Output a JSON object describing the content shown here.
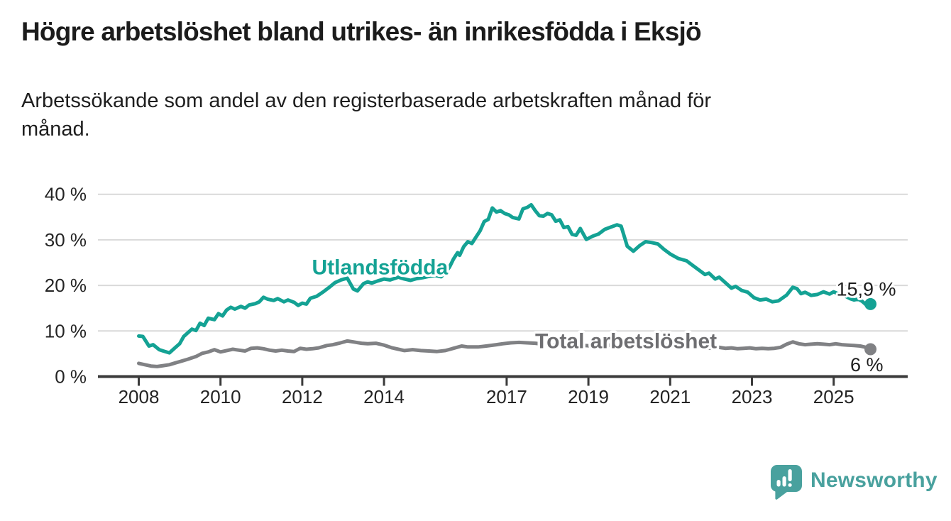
{
  "chart_data": {
    "type": "line",
    "title": "Högre arbetslöshet bland utrikes- än inrikesfödda i Eksjö",
    "subtitle": "Arbetssökande som andel av den registerbaserade arbetskraften månad för\nmånad.",
    "unit": "%",
    "grid": "horizontal",
    "xlim": [
      2007.9,
      2026.3
    ],
    "ylim": [
      0,
      41
    ],
    "x_ticks": [
      {
        "year": 2008,
        "label": "2008"
      },
      {
        "year": 2010,
        "label": "2010"
      },
      {
        "year": 2012,
        "label": "2012"
      },
      {
        "year": 2014,
        "label": "2014"
      },
      {
        "year": 2017,
        "label": "2017"
      },
      {
        "year": 2019,
        "label": "2019"
      },
      {
        "year": 2021,
        "label": "2021"
      },
      {
        "year": 2023,
        "label": "2023"
      },
      {
        "year": 2025,
        "label": "2025"
      }
    ],
    "y_ticks": [
      {
        "value": 0,
        "label": "0 %"
      },
      {
        "value": 10,
        "label": "10 %"
      },
      {
        "value": 20,
        "label": "20 %"
      },
      {
        "value": 30,
        "label": "30 %"
      },
      {
        "value": 40,
        "label": "40 %"
      }
    ],
    "series": [
      {
        "name": "Utlandsfödda",
        "color": "#14a294",
        "label_color": "#14a294",
        "end_value": 15.9,
        "end_label": "15,9 %",
        "end_label_side": "above",
        "label_pos": {
          "x": 2013.9,
          "y": 22.4
        },
        "points": [
          [
            2008.0,
            8.9
          ],
          [
            2008.1,
            8.8
          ],
          [
            2008.25,
            6.7
          ],
          [
            2008.35,
            7.0
          ],
          [
            2008.5,
            5.9
          ],
          [
            2008.6,
            5.6
          ],
          [
            2008.75,
            5.2
          ],
          [
            2008.9,
            6.4
          ],
          [
            2009.0,
            7.2
          ],
          [
            2009.1,
            8.8
          ],
          [
            2009.3,
            10.4
          ],
          [
            2009.4,
            10.1
          ],
          [
            2009.5,
            11.7
          ],
          [
            2009.6,
            11.2
          ],
          [
            2009.7,
            12.8
          ],
          [
            2009.85,
            12.5
          ],
          [
            2009.95,
            13.8
          ],
          [
            2010.05,
            13.3
          ],
          [
            2010.15,
            14.6
          ],
          [
            2010.25,
            15.2
          ],
          [
            2010.35,
            14.8
          ],
          [
            2010.5,
            15.4
          ],
          [
            2010.6,
            15.0
          ],
          [
            2010.7,
            15.7
          ],
          [
            2010.85,
            16.0
          ],
          [
            2010.95,
            16.4
          ],
          [
            2011.05,
            17.4
          ],
          [
            2011.15,
            17.0
          ],
          [
            2011.3,
            16.7
          ],
          [
            2011.4,
            17.1
          ],
          [
            2011.55,
            16.4
          ],
          [
            2011.65,
            16.8
          ],
          [
            2011.8,
            16.3
          ],
          [
            2011.9,
            15.6
          ],
          [
            2012.0,
            16.1
          ],
          [
            2012.1,
            15.9
          ],
          [
            2012.2,
            17.2
          ],
          [
            2012.35,
            17.6
          ],
          [
            2012.5,
            18.5
          ],
          [
            2012.65,
            19.5
          ],
          [
            2012.8,
            20.6
          ],
          [
            2012.95,
            21.2
          ],
          [
            2013.1,
            21.6
          ],
          [
            2013.25,
            19.2
          ],
          [
            2013.35,
            18.8
          ],
          [
            2013.5,
            20.4
          ],
          [
            2013.6,
            20.8
          ],
          [
            2013.7,
            20.5
          ],
          [
            2013.85,
            21.0
          ],
          [
            2014.0,
            21.4
          ],
          [
            2014.15,
            21.2
          ],
          [
            2014.35,
            21.8
          ],
          [
            2014.5,
            21.4
          ],
          [
            2014.65,
            21.1
          ],
          [
            2014.8,
            21.5
          ],
          [
            2014.95,
            21.7
          ],
          [
            2015.1,
            22.0
          ],
          [
            2015.25,
            22.2
          ],
          [
            2015.4,
            21.9
          ],
          [
            2015.5,
            22.8
          ],
          [
            2015.6,
            24.0
          ],
          [
            2015.7,
            25.8
          ],
          [
            2015.8,
            27.2
          ],
          [
            2015.85,
            26.6
          ],
          [
            2015.95,
            28.5
          ],
          [
            2016.05,
            29.6
          ],
          [
            2016.15,
            29.2
          ],
          [
            2016.25,
            30.6
          ],
          [
            2016.35,
            32.0
          ],
          [
            2016.45,
            34.0
          ],
          [
            2016.55,
            34.5
          ],
          [
            2016.65,
            37.0
          ],
          [
            2016.75,
            36.1
          ],
          [
            2016.85,
            36.4
          ],
          [
            2016.95,
            35.8
          ],
          [
            2017.05,
            35.5
          ],
          [
            2017.15,
            34.9
          ],
          [
            2017.3,
            34.6
          ],
          [
            2017.4,
            36.8
          ],
          [
            2017.5,
            37.1
          ],
          [
            2017.6,
            37.7
          ],
          [
            2017.7,
            36.4
          ],
          [
            2017.8,
            35.3
          ],
          [
            2017.9,
            35.2
          ],
          [
            2018.0,
            35.8
          ],
          [
            2018.1,
            35.5
          ],
          [
            2018.2,
            34.1
          ],
          [
            2018.3,
            34.4
          ],
          [
            2018.4,
            32.7
          ],
          [
            2018.5,
            32.9
          ],
          [
            2018.6,
            31.2
          ],
          [
            2018.7,
            31.0
          ],
          [
            2018.8,
            32.5
          ],
          [
            2018.95,
            30.1
          ],
          [
            2019.1,
            30.8
          ],
          [
            2019.25,
            31.3
          ],
          [
            2019.4,
            32.3
          ],
          [
            2019.55,
            32.8
          ],
          [
            2019.7,
            33.3
          ],
          [
            2019.8,
            33.0
          ],
          [
            2019.95,
            28.6
          ],
          [
            2020.1,
            27.5
          ],
          [
            2020.25,
            28.7
          ],
          [
            2020.4,
            29.6
          ],
          [
            2020.55,
            29.4
          ],
          [
            2020.7,
            29.1
          ],
          [
            2020.85,
            27.9
          ],
          [
            2021.0,
            26.9
          ],
          [
            2021.2,
            25.9
          ],
          [
            2021.4,
            25.4
          ],
          [
            2021.55,
            24.4
          ],
          [
            2021.7,
            23.4
          ],
          [
            2021.85,
            22.4
          ],
          [
            2021.95,
            22.7
          ],
          [
            2022.1,
            21.4
          ],
          [
            2022.2,
            21.8
          ],
          [
            2022.35,
            20.6
          ],
          [
            2022.5,
            19.4
          ],
          [
            2022.6,
            19.8
          ],
          [
            2022.75,
            18.9
          ],
          [
            2022.9,
            18.5
          ],
          [
            2023.05,
            17.3
          ],
          [
            2023.2,
            16.8
          ],
          [
            2023.35,
            17.0
          ],
          [
            2023.5,
            16.4
          ],
          [
            2023.65,
            16.6
          ],
          [
            2023.85,
            17.9
          ],
          [
            2024.0,
            19.6
          ],
          [
            2024.1,
            19.3
          ],
          [
            2024.2,
            18.2
          ],
          [
            2024.3,
            18.5
          ],
          [
            2024.45,
            17.8
          ],
          [
            2024.6,
            18.0
          ],
          [
            2024.75,
            18.6
          ],
          [
            2024.9,
            18.1
          ],
          [
            2025.0,
            18.6
          ],
          [
            2025.1,
            18.2
          ],
          [
            2025.25,
            17.8
          ],
          [
            2025.4,
            17.1
          ],
          [
            2025.5,
            16.8
          ],
          [
            2025.6,
            17.0
          ],
          [
            2025.7,
            16.5
          ],
          [
            2025.8,
            15.7
          ],
          [
            2025.9,
            15.9
          ]
        ]
      },
      {
        "name": "Total arbetslöshet",
        "color": "#808184",
        "label_color": "#6e6e71",
        "end_value": 6,
        "end_label": "6 %",
        "end_label_side": "below",
        "label_pos": {
          "x": 2019.92,
          "y": 6.25
        },
        "points": [
          [
            2008.0,
            2.9
          ],
          [
            2008.15,
            2.6
          ],
          [
            2008.3,
            2.3
          ],
          [
            2008.45,
            2.2
          ],
          [
            2008.6,
            2.4
          ],
          [
            2008.75,
            2.6
          ],
          [
            2008.9,
            3.0
          ],
          [
            2009.05,
            3.4
          ],
          [
            2009.2,
            3.8
          ],
          [
            2009.4,
            4.4
          ],
          [
            2009.55,
            5.1
          ],
          [
            2009.7,
            5.4
          ],
          [
            2009.85,
            5.9
          ],
          [
            2010.0,
            5.4
          ],
          [
            2010.15,
            5.7
          ],
          [
            2010.3,
            6.0
          ],
          [
            2010.45,
            5.8
          ],
          [
            2010.6,
            5.6
          ],
          [
            2010.75,
            6.2
          ],
          [
            2010.9,
            6.3
          ],
          [
            2011.05,
            6.1
          ],
          [
            2011.2,
            5.8
          ],
          [
            2011.35,
            5.6
          ],
          [
            2011.5,
            5.8
          ],
          [
            2011.65,
            5.6
          ],
          [
            2011.8,
            5.5
          ],
          [
            2011.95,
            6.2
          ],
          [
            2012.1,
            6.0
          ],
          [
            2012.25,
            6.1
          ],
          [
            2012.4,
            6.3
          ],
          [
            2012.6,
            6.8
          ],
          [
            2012.75,
            7.0
          ],
          [
            2012.9,
            7.3
          ],
          [
            2013.1,
            7.8
          ],
          [
            2013.25,
            7.6
          ],
          [
            2013.45,
            7.3
          ],
          [
            2013.6,
            7.2
          ],
          [
            2013.8,
            7.3
          ],
          [
            2014.0,
            6.9
          ],
          [
            2014.2,
            6.3
          ],
          [
            2014.35,
            6.0
          ],
          [
            2014.5,
            5.7
          ],
          [
            2014.7,
            5.9
          ],
          [
            2014.9,
            5.7
          ],
          [
            2015.1,
            5.6
          ],
          [
            2015.3,
            5.5
          ],
          [
            2015.5,
            5.7
          ],
          [
            2015.7,
            6.2
          ],
          [
            2015.9,
            6.7
          ],
          [
            2016.05,
            6.5
          ],
          [
            2016.3,
            6.5
          ],
          [
            2016.5,
            6.7
          ],
          [
            2016.75,
            7.0
          ],
          [
            2016.9,
            7.2
          ],
          [
            2017.1,
            7.4
          ],
          [
            2017.3,
            7.5
          ],
          [
            2017.5,
            7.4
          ],
          [
            2017.7,
            7.3
          ],
          [
            2017.9,
            7.1
          ],
          [
            2018.1,
            7.0
          ],
          [
            2018.3,
            6.9
          ],
          [
            2018.5,
            6.8
          ],
          [
            2018.7,
            6.9
          ],
          [
            2018.9,
            6.8
          ],
          [
            2019.1,
            6.7
          ],
          [
            2019.3,
            6.8
          ],
          [
            2019.5,
            6.9
          ],
          [
            2019.7,
            6.8
          ],
          [
            2019.9,
            6.9
          ],
          [
            2020.1,
            7.1
          ],
          [
            2020.3,
            7.2
          ],
          [
            2020.5,
            7.3
          ],
          [
            2020.7,
            7.1
          ],
          [
            2020.9,
            7.0
          ],
          [
            2021.1,
            6.8
          ],
          [
            2021.3,
            6.7
          ],
          [
            2021.5,
            6.5
          ],
          [
            2021.7,
            6.4
          ],
          [
            2021.9,
            6.3
          ],
          [
            2022.05,
            6.2
          ],
          [
            2022.2,
            6.4
          ],
          [
            2022.35,
            6.2
          ],
          [
            2022.5,
            6.3
          ],
          [
            2022.65,
            6.1
          ],
          [
            2022.8,
            6.2
          ],
          [
            2022.95,
            6.3
          ],
          [
            2023.1,
            6.1
          ],
          [
            2023.25,
            6.2
          ],
          [
            2023.4,
            6.1
          ],
          [
            2023.55,
            6.2
          ],
          [
            2023.7,
            6.4
          ],
          [
            2023.85,
            7.1
          ],
          [
            2024.0,
            7.6
          ],
          [
            2024.15,
            7.2
          ],
          [
            2024.3,
            7.0
          ],
          [
            2024.45,
            7.1
          ],
          [
            2024.6,
            7.2
          ],
          [
            2024.75,
            7.1
          ],
          [
            2024.9,
            7.0
          ],
          [
            2025.05,
            7.2
          ],
          [
            2025.2,
            7.0
          ],
          [
            2025.35,
            6.9
          ],
          [
            2025.5,
            6.8
          ],
          [
            2025.65,
            6.7
          ],
          [
            2025.8,
            6.4
          ],
          [
            2025.9,
            6.0
          ]
        ]
      }
    ]
  },
  "branding": {
    "logo_text": "Newsworthy",
    "logo_color": "#49a19e"
  },
  "style": {
    "axis_color": "#3b3b3b",
    "gridline_color": "#d9d9d9"
  }
}
